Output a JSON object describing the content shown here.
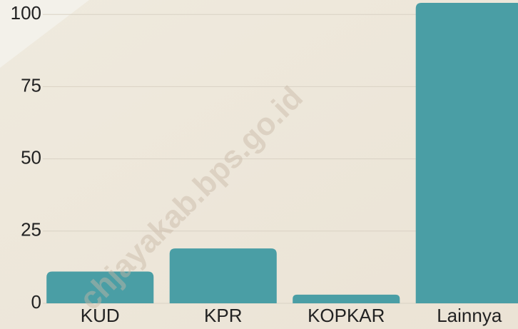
{
  "chart_data": {
    "type": "bar",
    "categories": [
      "KUD",
      "KPR",
      "KOPKAR",
      "Lainnya"
    ],
    "values": [
      11,
      19,
      3,
      104
    ],
    "color": "#4a9ea5",
    "ylim": [
      0,
      105
    ],
    "yticks": [
      0,
      25,
      50,
      75,
      100
    ],
    "grid": true,
    "watermark": "chjayakab.bps.go.id"
  }
}
